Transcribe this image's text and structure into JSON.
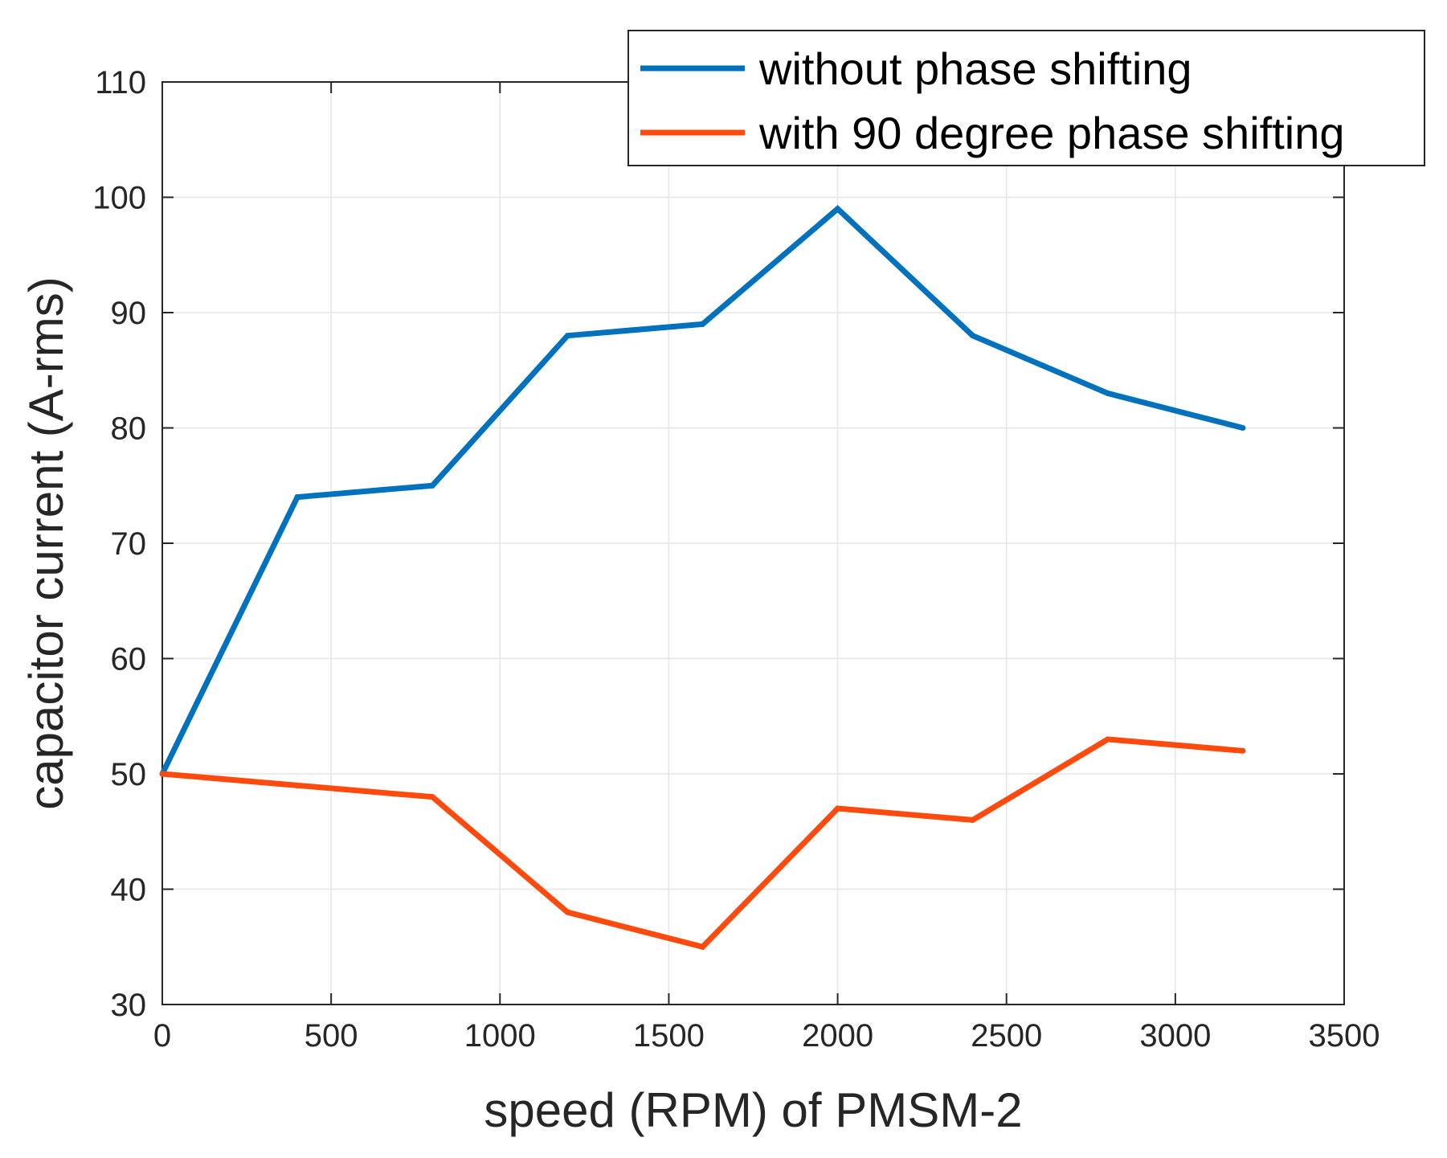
{
  "chart_data": {
    "type": "line",
    "title": "",
    "xlabel": "speed (RPM) of PMSM-2",
    "ylabel": "capacitor current (A-rms)",
    "xlim": [
      0,
      3500
    ],
    "ylim": [
      30,
      110
    ],
    "xticks": [
      0,
      500,
      1000,
      1500,
      2000,
      2500,
      3000,
      3500
    ],
    "yticks": [
      30,
      40,
      50,
      60,
      70,
      80,
      90,
      100,
      110
    ],
    "grid": true,
    "legend_position": "top-right",
    "x": [
      0,
      400,
      800,
      1200,
      1600,
      2000,
      2400,
      2800,
      3200
    ],
    "series": [
      {
        "name": "without phase shifting",
        "color": "#0072BD",
        "values": [
          50,
          74,
          75,
          88,
          89,
          99,
          88,
          83,
          80
        ]
      },
      {
        "name": "with 90 degree phase shifting",
        "color": "#FF4A0E",
        "values": [
          50,
          49,
          48,
          38,
          35,
          47,
          46,
          53,
          52
        ]
      }
    ]
  }
}
